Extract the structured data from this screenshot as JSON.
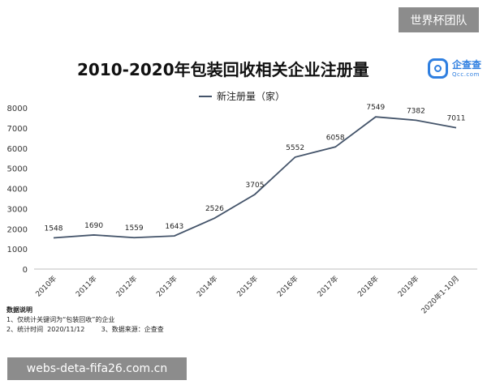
{
  "watermark_top": "世界杯团队",
  "watermark_bottom": "webs-deta-fifa26.com.cn",
  "logo": {
    "name": "企查查",
    "sub": "Qcc.com"
  },
  "chart_data": {
    "type": "line",
    "title": "2010-2020年包装回收相关企业注册量",
    "categories": [
      "2010年",
      "2011年",
      "2012年",
      "2013年",
      "2014年",
      "2015年",
      "2016年",
      "2017年",
      "2018年",
      "2019年",
      "2020年1-10月"
    ],
    "series": [
      {
        "name": "新注册量（家）",
        "values": [
          1548,
          1690,
          1559,
          1643,
          2526,
          3705,
          5552,
          6058,
          7549,
          7382,
          7011
        ]
      }
    ],
    "y_ticks": [
      0,
      1000,
      2000,
      3000,
      4000,
      5000,
      6000,
      7000,
      8000
    ],
    "ylim": [
      0,
      8000
    ],
    "grid": false,
    "legend_position": "top-center",
    "line_color": "#44546a"
  },
  "notes": {
    "heading": "数据说明",
    "line1": "1、仅统计关键词为“包装回收”的企业",
    "line2": "2、统计时间  2020/11/12        3、数据来源：企查查"
  }
}
